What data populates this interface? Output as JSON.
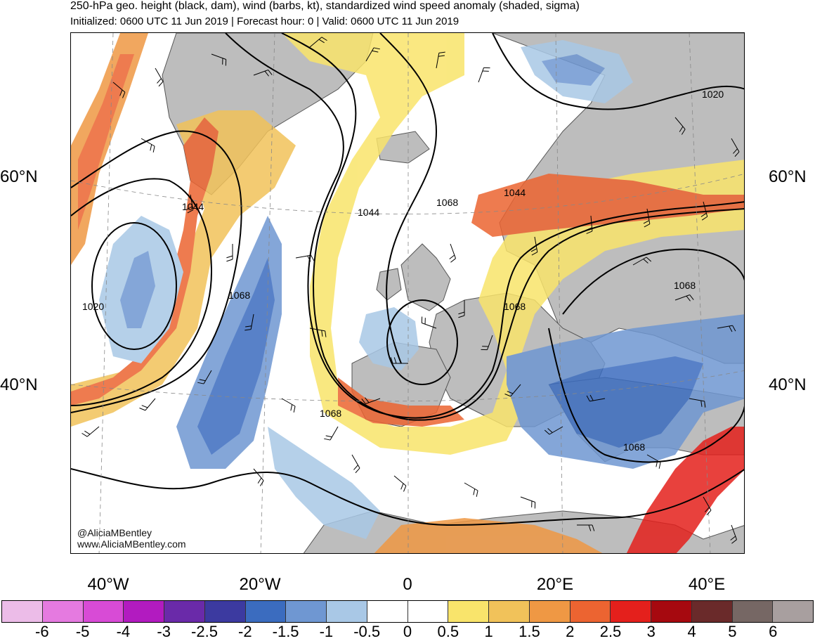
{
  "title": "250-hPa geo. height (black, dam), wind (barbs, kt), standardized wind speed anomaly (shaded, sigma)",
  "subtitle": "Initialized: 0600 UTC 11 Jun 2019 | Forecast hour: 0 | Valid: 0600 UTC 11 Jun 2019",
  "lat_labels": {
    "left_60": "60°N",
    "right_60": "60°N",
    "left_40": "40°N",
    "right_40": "40°N"
  },
  "lon_labels": [
    "40°W",
    "20°W",
    "0",
    "20°E",
    "40°E"
  ],
  "credits": {
    "twitter": "@AliciaMBentley",
    "website": "www.AliciaMBentley.com"
  },
  "contour_labels": [
    "1020",
    "1044",
    "1044",
    "1068",
    "1068",
    "1068",
    "1068",
    "1068",
    "1044",
    "1068",
    "1020"
  ],
  "colorbar": {
    "labels": [
      "-6",
      "-5",
      "-4",
      "-3",
      "-2.5",
      "-2",
      "-1.5",
      "-1",
      "-0.5",
      "0",
      "0.5",
      "1",
      "1.5",
      "2",
      "2.5",
      "3",
      "4",
      "5",
      "6"
    ],
    "colors": [
      "#ecbce8",
      "#e57ae0",
      "#d84bd6",
      "#b21bc0",
      "#6a2aa9",
      "#3c3aa0",
      "#3b6cbf",
      "#6f97d2",
      "#a9c8e6",
      "#ffffff",
      "#ffffff",
      "#f9e46b",
      "#f1c25a",
      "#ef9844",
      "#ec6431",
      "#e4201c",
      "#a6090f",
      "#6a2a2a",
      "#766764",
      "#a89f9f"
    ]
  },
  "colors": {
    "land": "#bdbdbd",
    "ocean": "#ffffff",
    "contour": "#000000",
    "coast": "#555555"
  }
}
